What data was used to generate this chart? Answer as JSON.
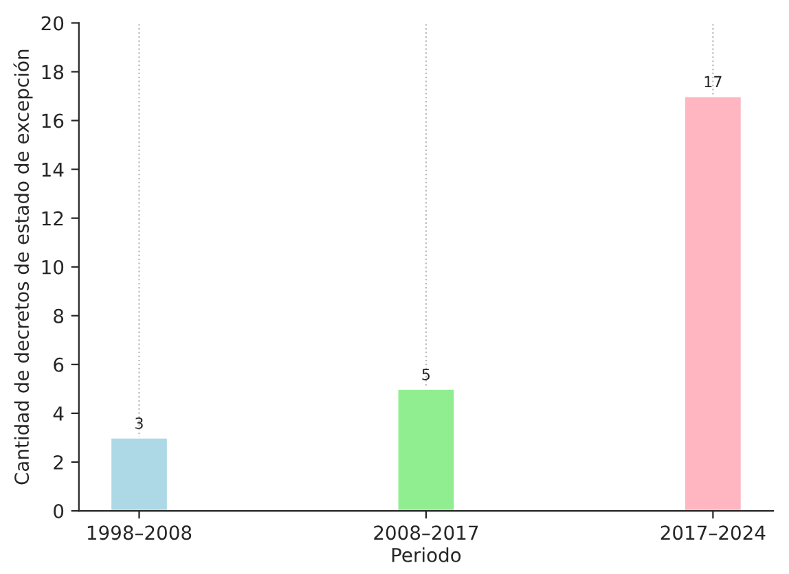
{
  "chart_data": {
    "type": "bar",
    "xlabel": "Periodo",
    "ylabel": "Cantidad de decretos de estado de excepción",
    "categories": [
      "1998–2008",
      "2008–2017",
      "2017–2024"
    ],
    "values": [
      3,
      5,
      17
    ],
    "colors": [
      "#add8e6",
      "#90ee90",
      "#ffb6c1"
    ],
    "ylim": [
      0,
      20
    ],
    "yticks": [
      0,
      2,
      4,
      6,
      8,
      10,
      12,
      14,
      16,
      18,
      20
    ],
    "grid": "x",
    "data_labels": true
  }
}
